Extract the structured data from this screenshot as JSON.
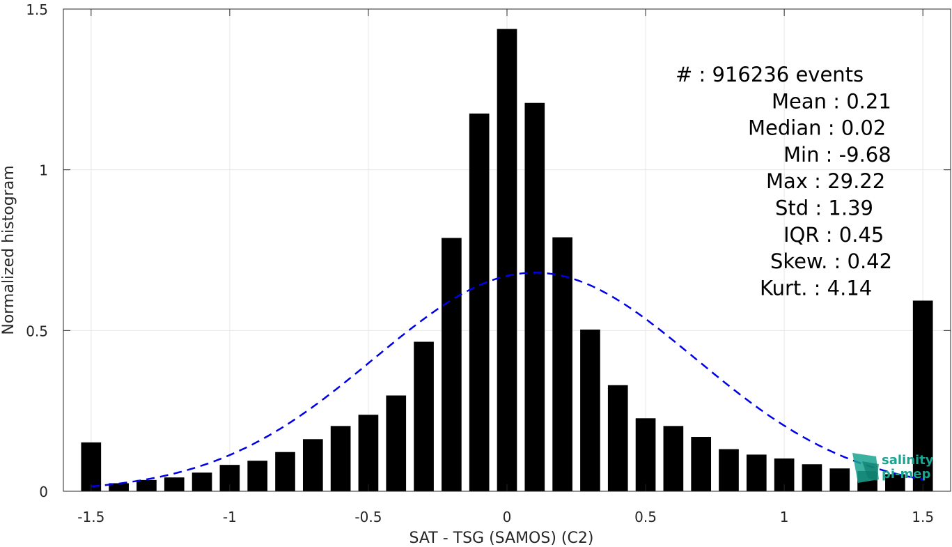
{
  "chart_data": {
    "type": "bar",
    "xlabel": "SAT - TSG (SAMOS) (C2)",
    "ylabel": "Normalized histogram",
    "xlim": [
      -1.6,
      1.6
    ],
    "ylim": [
      0,
      1.5
    ],
    "grid": true,
    "x_ticks": [
      -1.5,
      -1,
      -0.5,
      0,
      0.5,
      1,
      1.5
    ],
    "x_tick_labels": [
      "-1.5",
      "-1",
      "-0.5",
      "0",
      "0.5",
      "1",
      "1.5"
    ],
    "y_ticks": [
      0,
      0.5,
      1,
      1.5
    ],
    "y_tick_labels": [
      "0",
      "0.5",
      "1",
      "1.5"
    ],
    "bar_color": "#000000",
    "bins_x": [
      -1.5,
      -1.4,
      -1.3,
      -1.2,
      -1.1,
      -1.0,
      -0.9,
      -0.8,
      -0.7,
      -0.6,
      -0.5,
      -0.4,
      -0.3,
      -0.2,
      -0.1,
      0.0,
      0.1,
      0.2,
      0.3,
      0.4,
      0.5,
      0.6,
      0.7,
      0.8,
      0.9,
      1.0,
      1.1,
      1.2,
      1.3,
      1.4,
      1.5
    ],
    "values": [
      0.152,
      0.025,
      0.035,
      0.043,
      0.058,
      0.082,
      0.095,
      0.122,
      0.162,
      0.203,
      0.238,
      0.298,
      0.465,
      0.788,
      1.175,
      1.438,
      1.208,
      0.79,
      0.503,
      0.33,
      0.227,
      0.203,
      0.169,
      0.131,
      0.114,
      0.102,
      0.084,
      0.071,
      0.063,
      0.053,
      0.593
    ],
    "fit": {
      "name": "Gaussian fit",
      "color": "#0000e6",
      "style": "dashed",
      "mean": 0.1,
      "peak": 0.68,
      "sigma": 0.58,
      "x_range": [
        -1.5,
        1.5
      ]
    },
    "stats": [
      {
        "label": "#  ",
        "value": "916236 events"
      },
      {
        "label": "Mean",
        "value": "0.21"
      },
      {
        "label": "Median",
        "value": "0.02"
      },
      {
        "label": "Min",
        "value": "-9.68"
      },
      {
        "label": "Max",
        "value": "29.22"
      },
      {
        "label": "Std",
        "value": "1.39"
      },
      {
        "label": "IQR",
        "value": "0.45"
      },
      {
        "label": "Skew.",
        "value": "0.42"
      },
      {
        "label": "Kurt.",
        "value": "4.14"
      }
    ]
  },
  "logo": {
    "line1": "salinity",
    "line2": "pi-mep",
    "color": "#1aa391"
  }
}
